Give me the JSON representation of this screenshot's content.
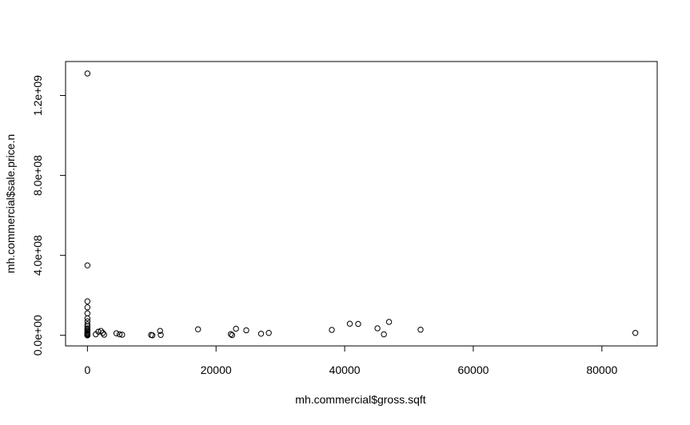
{
  "chart_data": {
    "type": "scatter",
    "title": "",
    "xlabel": "mh.commercial$gross.sqft",
    "ylabel": "mh.commercial$sale.price.n",
    "xlim": [
      -3400,
      88600
    ],
    "ylim": [
      -53000000,
      1370000000
    ],
    "xticks": [
      0,
      20000,
      40000,
      60000,
      80000
    ],
    "xtick_labels": [
      "0",
      "20000",
      "40000",
      "60000",
      "80000"
    ],
    "yticks": [
      0,
      400000000,
      800000000,
      1200000000
    ],
    "ytick_labels": [
      "0.0e+00",
      "4.0e+08",
      "8.0e+08",
      "1.2e+09"
    ],
    "grid": false,
    "marker": "open-circle",
    "x": [
      0,
      0,
      0,
      0,
      0,
      0,
      0,
      0,
      0,
      0,
      0,
      0,
      0,
      0,
      0,
      0,
      0,
      0,
      0,
      0,
      0,
      0,
      0,
      1300,
      1700,
      2100,
      2400,
      2600,
      4500,
      5000,
      5400,
      9900,
      10100,
      11300,
      11400,
      17200,
      22300,
      22500,
      23100,
      24700,
      27000,
      28200,
      38000,
      40800,
      42100,
      45100,
      46100,
      46900,
      51800,
      85200
    ],
    "y": [
      1310000000,
      350000000,
      170000000,
      140000000,
      110000000,
      85000000,
      70000000,
      55000000,
      45000000,
      35000000,
      28000000,
      22000000,
      17000000,
      12000000,
      9000000,
      6000000,
      4000000,
      2500000,
      1500000,
      800000,
      500000,
      300000,
      100000,
      5000000,
      18000000,
      22000000,
      12000000,
      3000000,
      10000000,
      5000000,
      3000000,
      2000000,
      0,
      22000000,
      2000000,
      30000000,
      6000000,
      1000000,
      33000000,
      25000000,
      8000000,
      12000000,
      27000000,
      58000000,
      57000000,
      35000000,
      5000000,
      67000000,
      28000000,
      12000000
    ]
  }
}
